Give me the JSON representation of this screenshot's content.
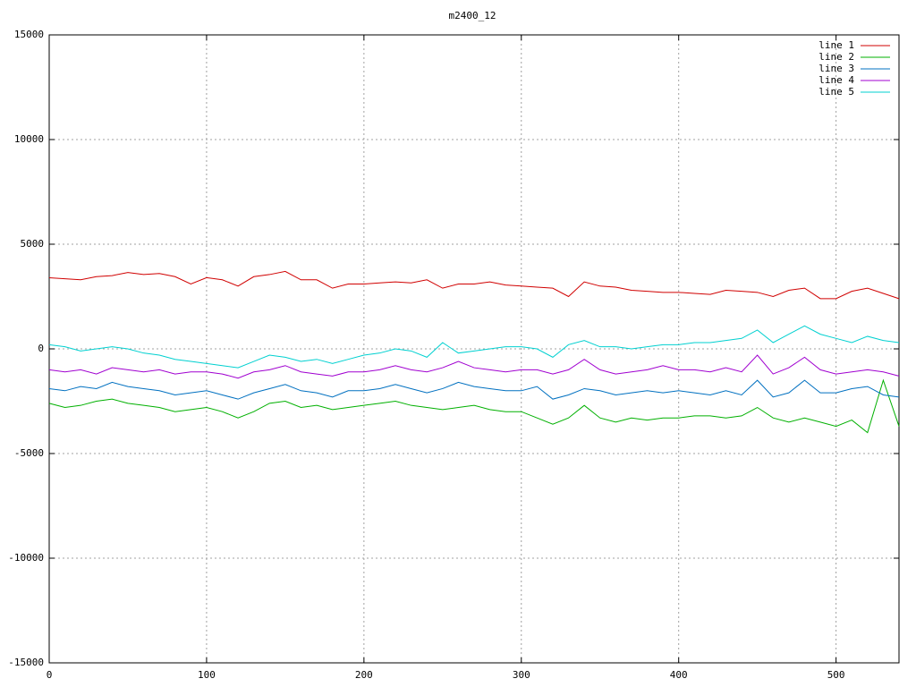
{
  "chart_data": {
    "type": "line",
    "title": "m2400_12",
    "x": [
      0,
      10,
      20,
      30,
      40,
      50,
      60,
      70,
      80,
      90,
      100,
      110,
      120,
      130,
      140,
      150,
      160,
      170,
      180,
      190,
      200,
      210,
      220,
      230,
      240,
      250,
      260,
      270,
      280,
      290,
      300,
      310,
      320,
      330,
      340,
      350,
      360,
      370,
      380,
      390,
      400,
      410,
      420,
      430,
      440,
      450,
      460,
      470,
      480,
      490,
      500,
      510,
      520,
      530,
      540
    ],
    "series": [
      {
        "name": "line 1",
        "color": "#d00000",
        "values": [
          3400,
          3350,
          3300,
          3450,
          3500,
          3650,
          3550,
          3600,
          3450,
          3100,
          3400,
          3300,
          3000,
          3450,
          3550,
          3700,
          3300,
          3300,
          2900,
          3100,
          3100,
          3150,
          3200,
          3150,
          3300,
          2900,
          3100,
          3100,
          3200,
          3050,
          3000,
          2950,
          2900,
          2500,
          3200,
          3000,
          2950,
          2800,
          2750,
          2700,
          2700,
          2650,
          2600,
          2800,
          2750,
          2700,
          2500,
          2800,
          2900,
          2400,
          2400,
          2750,
          2900,
          2650,
          2400
        ]
      },
      {
        "name": "line 2",
        "color": "#00b000",
        "values": [
          -2600,
          -2800,
          -2700,
          -2500,
          -2400,
          -2600,
          -2700,
          -2800,
          -3000,
          -2900,
          -2800,
          -3000,
          -3300,
          -3000,
          -2600,
          -2500,
          -2800,
          -2700,
          -2900,
          -2800,
          -2700,
          -2600,
          -2500,
          -2700,
          -2800,
          -2900,
          -2800,
          -2700,
          -2900,
          -3000,
          -3000,
          -3300,
          -3600,
          -3300,
          -2700,
          -3300,
          -3500,
          -3300,
          -3400,
          -3300,
          -3300,
          -3200,
          -3200,
          -3300,
          -3200,
          -2800,
          -3300,
          -3500,
          -3300,
          -3500,
          -3700,
          -3400,
          -4000,
          -1500,
          -3700
        ]
      },
      {
        "name": "line 3",
        "color": "#0070c0",
        "values": [
          -1900,
          -2000,
          -1800,
          -1900,
          -1600,
          -1800,
          -1900,
          -2000,
          -2200,
          -2100,
          -2000,
          -2200,
          -2400,
          -2100,
          -1900,
          -1700,
          -2000,
          -2100,
          -2300,
          -2000,
          -2000,
          -1900,
          -1700,
          -1900,
          -2100,
          -1900,
          -1600,
          -1800,
          -1900,
          -2000,
          -2000,
          -1800,
          -2400,
          -2200,
          -1900,
          -2000,
          -2200,
          -2100,
          -2000,
          -2100,
          -2000,
          -2100,
          -2200,
          -2000,
          -2200,
          -1500,
          -2300,
          -2100,
          -1500,
          -2100,
          -2100,
          -1900,
          -1800,
          -2200,
          -2300
        ]
      },
      {
        "name": "line 4",
        "color": "#a000d0",
        "values": [
          -1000,
          -1100,
          -1000,
          -1200,
          -900,
          -1000,
          -1100,
          -1000,
          -1200,
          -1100,
          -1100,
          -1200,
          -1400,
          -1100,
          -1000,
          -800,
          -1100,
          -1200,
          -1300,
          -1100,
          -1100,
          -1000,
          -800,
          -1000,
          -1100,
          -900,
          -600,
          -900,
          -1000,
          -1100,
          -1000,
          -1000,
          -1200,
          -1000,
          -500,
          -1000,
          -1200,
          -1100,
          -1000,
          -800,
          -1000,
          -1000,
          -1100,
          -900,
          -1100,
          -300,
          -1200,
          -900,
          -400,
          -1000,
          -1200,
          -1100,
          -1000,
          -1100,
          -1300
        ]
      },
      {
        "name": "line 5",
        "color": "#00d0d0",
        "values": [
          200,
          100,
          -100,
          0,
          100,
          0,
          -200,
          -300,
          -500,
          -600,
          -700,
          -800,
          -900,
          -600,
          -300,
          -400,
          -600,
          -500,
          -700,
          -500,
          -300,
          -200,
          0,
          -100,
          -400,
          300,
          -200,
          -100,
          0,
          100,
          100,
          0,
          -400,
          200,
          400,
          100,
          100,
          0,
          100,
          200,
          200,
          300,
          300,
          400,
          500,
          900,
          300,
          700,
          1100,
          700,
          500,
          300,
          600,
          400,
          300
        ]
      }
    ],
    "xlim": [
      0,
      540
    ],
    "ylim": [
      -15000,
      15000
    ],
    "xticks": [
      0,
      100,
      200,
      300,
      400,
      500
    ],
    "yticks": [
      -15000,
      -10000,
      -5000,
      0,
      5000,
      10000,
      15000
    ],
    "grid": true,
    "legend": "top-right"
  }
}
